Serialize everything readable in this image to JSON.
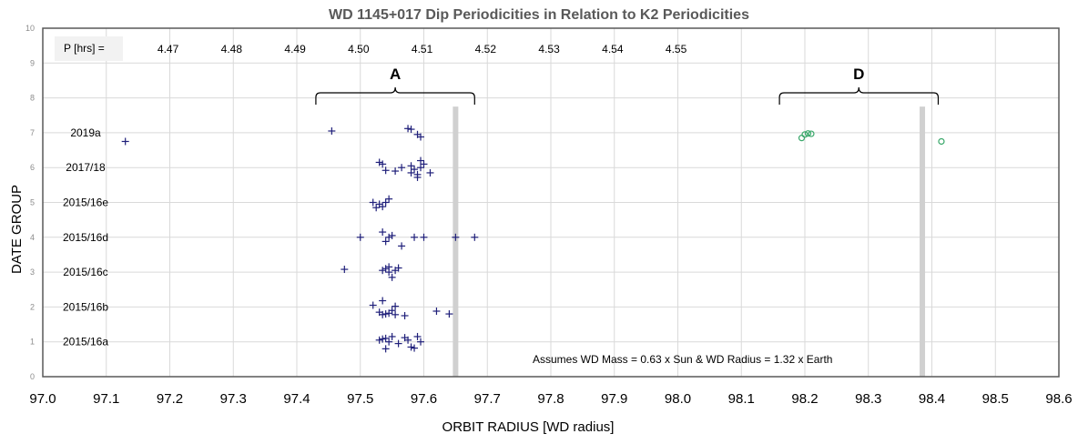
{
  "chart_data": {
    "type": "scatter",
    "title": "WD 1145+017 Dip Periodicities in Relation to K2 Periodicities",
    "xlabel": "ORBIT RADIUS [WD radius]",
    "ylabel": "DATE GROUP",
    "xlim": [
      97.0,
      98.6
    ],
    "ylim": [
      0,
      10
    ],
    "x_ticks": [
      "97.0",
      "97.1",
      "97.2",
      "97.3",
      "97.4",
      "97.5",
      "97.6",
      "97.7",
      "97.8",
      "97.9",
      "98.0",
      "98.1",
      "98.2",
      "98.3",
      "98.4",
      "98.5",
      "98.6"
    ],
    "y_ticks": [
      "0",
      "1",
      "2",
      "3",
      "4",
      "5",
      "6",
      "7",
      "8",
      "9",
      "10"
    ],
    "grid": true,
    "period_header": "P [hrs] =",
    "period_labels": [
      {
        "label": "4.47",
        "x": 97.17
      },
      {
        "label": "4.48",
        "x": 97.27
      },
      {
        "label": "4.49",
        "x": 97.37
      },
      {
        "label": "4.50",
        "x": 97.47
      },
      {
        "label": "4.51",
        "x": 97.57
      },
      {
        "label": "4.52",
        "x": 97.67
      },
      {
        "label": "4.53",
        "x": 97.77
      },
      {
        "label": "4.54",
        "x": 97.87
      },
      {
        "label": "4.55",
        "x": 97.97
      }
    ],
    "date_groups": [
      {
        "label": "2015/16a",
        "y": 1
      },
      {
        "label": "2015/16b",
        "y": 2
      },
      {
        "label": "2015/16c",
        "y": 3
      },
      {
        "label": "2015/16d",
        "y": 4
      },
      {
        "label": "2015/16e",
        "y": 5
      },
      {
        "label": "2017/18",
        "y": 6
      },
      {
        "label": "2019a",
        "y": 7
      }
    ],
    "brackets": [
      {
        "label": "A",
        "x_start": 97.43,
        "x_end": 97.68
      },
      {
        "label": "D",
        "x_start": 98.16,
        "x_end": 98.41
      }
    ],
    "k2_lines": [
      97.65,
      98.385
    ],
    "note": "Assumes WD Mass = 0.63 x Sun & WD Radius  = 1.32 x Earth",
    "series": [
      {
        "marker": "plus",
        "color": "#1f1f7a",
        "points": [
          [
            97.13,
            6.75
          ],
          [
            97.455,
            7.05
          ],
          [
            97.575,
            7.12
          ],
          [
            97.58,
            7.1
          ],
          [
            97.59,
            6.95
          ],
          [
            97.595,
            6.88
          ],
          [
            97.53,
            6.15
          ],
          [
            97.535,
            6.1
          ],
          [
            97.54,
            5.92
          ],
          [
            97.555,
            5.9
          ],
          [
            97.565,
            6.0
          ],
          [
            97.58,
            6.05
          ],
          [
            97.58,
            5.85
          ],
          [
            97.585,
            5.95
          ],
          [
            97.59,
            5.8
          ],
          [
            97.59,
            5.72
          ],
          [
            97.595,
            6.2
          ],
          [
            97.595,
            6.0
          ],
          [
            97.6,
            6.1
          ],
          [
            97.61,
            5.85
          ],
          [
            97.52,
            5.0
          ],
          [
            97.525,
            4.85
          ],
          [
            97.53,
            4.95
          ],
          [
            97.535,
            4.88
          ],
          [
            97.54,
            5.0
          ],
          [
            97.545,
            5.1
          ],
          [
            97.5,
            4.0
          ],
          [
            97.535,
            4.15
          ],
          [
            97.54,
            3.88
          ],
          [
            97.545,
            4.0
          ],
          [
            97.55,
            4.05
          ],
          [
            97.565,
            3.75
          ],
          [
            97.585,
            4.0
          ],
          [
            97.6,
            4.0
          ],
          [
            97.65,
            4.0
          ],
          [
            97.68,
            4.0
          ],
          [
            97.475,
            3.08
          ],
          [
            97.535,
            3.05
          ],
          [
            97.54,
            3.1
          ],
          [
            97.545,
            3.0
          ],
          [
            97.545,
            3.15
          ],
          [
            97.55,
            2.85
          ],
          [
            97.555,
            3.05
          ],
          [
            97.56,
            3.12
          ],
          [
            97.52,
            2.05
          ],
          [
            97.53,
            1.85
          ],
          [
            97.535,
            1.78
          ],
          [
            97.535,
            2.18
          ],
          [
            97.54,
            1.8
          ],
          [
            97.545,
            1.82
          ],
          [
            97.55,
            1.9
          ],
          [
            97.555,
            1.78
          ],
          [
            97.555,
            2.02
          ],
          [
            97.57,
            1.75
          ],
          [
            97.62,
            1.88
          ],
          [
            97.64,
            1.8
          ],
          [
            97.53,
            1.05
          ],
          [
            97.535,
            1.08
          ],
          [
            97.54,
            0.8
          ],
          [
            97.54,
            1.1
          ],
          [
            97.545,
            1.0
          ],
          [
            97.55,
            1.15
          ],
          [
            97.56,
            0.95
          ],
          [
            97.57,
            1.12
          ],
          [
            97.575,
            1.05
          ],
          [
            97.58,
            0.85
          ],
          [
            97.585,
            0.82
          ],
          [
            97.59,
            1.15
          ],
          [
            97.595,
            1.0
          ]
        ]
      },
      {
        "marker": "circle",
        "color": "#3aa86b",
        "points": [
          [
            98.195,
            6.85
          ],
          [
            98.2,
            6.95
          ],
          [
            98.205,
            6.98
          ],
          [
            98.21,
            6.97
          ],
          [
            98.415,
            6.75
          ]
        ]
      }
    ]
  }
}
